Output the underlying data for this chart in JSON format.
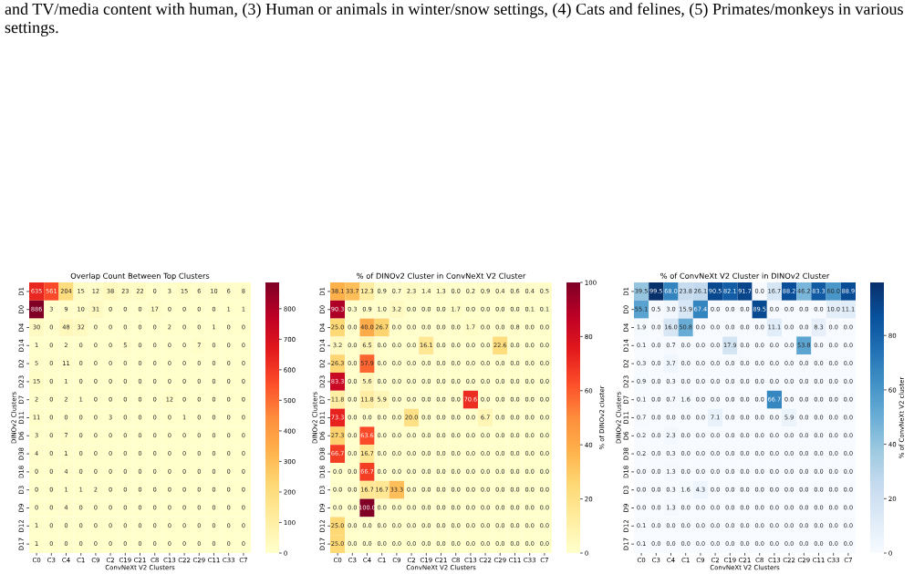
{
  "chart_data": [
    {
      "type": "heatmap",
      "title": "Overlap Count Between Top Clusters",
      "xlabel": "ConvNeXt V2 Clusters",
      "ylabel": "DINOv2 Clusters",
      "annotations": [
        "and TV/media content with human, (3) Human or animals in winter/snow settings, (4) Cats and felines, (5) Primates/monkeys in various settings."
      ],
      "categories": [
        "C0",
        "C3",
        "C4",
        "C1",
        "C9",
        "C2",
        "C19",
        "C21",
        "C8",
        "C13",
        "C22",
        "C29",
        "C11",
        "C33",
        "C7"
      ],
      "y_categories": [
        "D1",
        "D0",
        "D4",
        "D14",
        "D2",
        "D23",
        "D7",
        "D11",
        "D6",
        "D38",
        "D18",
        "D3",
        "D9",
        "D12",
        "D17"
      ],
      "clim": [
        0,
        886
      ],
      "cticks": [
        0,
        100,
        200,
        300,
        400,
        500,
        600,
        700,
        800
      ],
      "data_labels": true,
      "cells": [
        [
          635,
          561,
          204,
          15,
          12,
          38,
          23,
          22,
          0,
          3,
          15,
          6,
          10,
          6,
          8
        ],
        [
          886,
          3,
          9,
          10,
          31,
          0,
          0,
          0,
          17,
          0,
          0,
          0,
          0,
          1,
          1
        ],
        [
          30,
          0,
          48,
          32,
          0,
          0,
          0,
          0,
          0,
          2,
          0,
          0,
          1,
          0,
          0
        ],
        [
          1,
          0,
          2,
          0,
          0,
          0,
          5,
          0,
          0,
          0,
          0,
          7,
          0,
          0,
          0
        ],
        [
          5,
          0,
          11,
          0,
          0,
          0,
          0,
          0,
          0,
          0,
          0,
          0,
          0,
          0,
          0
        ],
        [
          15,
          0,
          1,
          0,
          0,
          0,
          0,
          0,
          0,
          0,
          0,
          0,
          0,
          0,
          0
        ],
        [
          2,
          0,
          2,
          1,
          0,
          0,
          0,
          0,
          0,
          12,
          0,
          0,
          0,
          0,
          0
        ],
        [
          11,
          0,
          0,
          0,
          0,
          3,
          0,
          0,
          0,
          0,
          1,
          0,
          0,
          0,
          0
        ],
        [
          3,
          0,
          7,
          0,
          0,
          0,
          0,
          0,
          0,
          0,
          0,
          0,
          0,
          0,
          0
        ],
        [
          4,
          0,
          1,
          0,
          0,
          0,
          0,
          0,
          0,
          0,
          0,
          0,
          0,
          0,
          0
        ],
        [
          0,
          0,
          4,
          0,
          0,
          0,
          0,
          0,
          0,
          0,
          0,
          0,
          0,
          0,
          0
        ],
        [
          0,
          0,
          1,
          1,
          2,
          0,
          0,
          0,
          0,
          0,
          0,
          0,
          0,
          0,
          0
        ],
        [
          0,
          0,
          4,
          0,
          0,
          0,
          0,
          0,
          0,
          0,
          0,
          0,
          0,
          0,
          0
        ],
        [
          1,
          0,
          0,
          0,
          0,
          0,
          0,
          0,
          0,
          0,
          0,
          0,
          0,
          0,
          0
        ],
        [
          1,
          0,
          0,
          0,
          0,
          0,
          0,
          0,
          0,
          0,
          0,
          0,
          0,
          0,
          0
        ]
      ]
    },
    {
      "type": "heatmap",
      "title": "% of DINOv2 Cluster in ConvNeXt V2 Cluster",
      "xlabel": "ConvNeXt V2 Clusters",
      "ylabel": "DINOv2 Clusters",
      "clabel": "% of DINOv2 cluster",
      "categories": [
        "C0",
        "C3",
        "C4",
        "C1",
        "C9",
        "C2",
        "C19",
        "C21",
        "C8",
        "C13",
        "C22",
        "C29",
        "C11",
        "C33",
        "C7"
      ],
      "y_categories": [
        "D1",
        "D0",
        "D4",
        "D14",
        "D2",
        "D23",
        "D7",
        "D11",
        "D6",
        "D38",
        "D18",
        "D3",
        "D9",
        "D12",
        "D17"
      ],
      "clim": [
        0,
        100
      ],
      "cticks": [
        0,
        20,
        40,
        60,
        80,
        100
      ],
      "data_labels": true,
      "cell_labels": [
        [
          "38.1",
          "33.7",
          "12.3",
          "0.9",
          "0.7",
          "2.3",
          "1.4",
          "1.3",
          "0.0",
          "0.2",
          "0.9",
          "0.4",
          "0.6",
          "0.4",
          "0.5"
        ],
        [
          "90.3",
          "0.3",
          "0.9",
          "1.0",
          "3.2",
          "0.0",
          "0.0",
          "0.0",
          "1.7",
          "0.0",
          "0.0",
          "0.0",
          "0.0",
          "0.1",
          "0.1"
        ],
        [
          "25.0",
          "0.0",
          "40.0",
          "26.7",
          "0.0",
          "0.0",
          "0.0",
          "0.0",
          "0.0",
          "1.7",
          "0.0",
          "0.0",
          "0.8",
          "0.0",
          "0.0"
        ],
        [
          "3.2",
          "0.0",
          "6.5",
          "0.0",
          "0.0",
          "0.0",
          "16.1",
          "0.0",
          "0.0",
          "0.0",
          "0.0",
          "22.6",
          "0.0",
          "0.0",
          "0.0"
        ],
        [
          "26.3",
          "0.0",
          "57.9",
          "0.0",
          "0.0",
          "0.0",
          "0.0",
          "0.0",
          "0.0",
          "0.0",
          "0.0",
          "0.0",
          "0.0",
          "0.0",
          "0.0"
        ],
        [
          "83.3",
          "0.0",
          "5.6",
          "0.0",
          "0.0",
          "0.0",
          "0.0",
          "0.0",
          "0.0",
          "0.0",
          "0.0",
          "0.0",
          "0.0",
          "0.0",
          "0.0"
        ],
        [
          "11.8",
          "0.0",
          "11.8",
          "5.9",
          "0.0",
          "0.0",
          "0.0",
          "0.0",
          "0.0",
          "70.6",
          "0.0",
          "0.0",
          "0.0",
          "0.0",
          "0.0"
        ],
        [
          "73.3",
          "0.0",
          "0.0",
          "0.0",
          "0.0",
          "20.0",
          "0.0",
          "0.0",
          "0.0",
          "0.0",
          "6.7",
          "0.0",
          "0.0",
          "0.0",
          "0.0"
        ],
        [
          "27.3",
          "0.0",
          "63.6",
          "0.0",
          "0.0",
          "0.0",
          "0.0",
          "0.0",
          "0.0",
          "0.0",
          "0.0",
          "0.0",
          "0.0",
          "0.0",
          "0.0"
        ],
        [
          "66.7",
          "0.0",
          "16.7",
          "0.0",
          "0.0",
          "0.0",
          "0.0",
          "0.0",
          "0.0",
          "0.0",
          "0.0",
          "0.0",
          "0.0",
          "0.0",
          "0.0"
        ],
        [
          "0.0",
          "0.0",
          "66.7",
          "0.0",
          "0.0",
          "0.0",
          "0.0",
          "0.0",
          "0.0",
          "0.0",
          "0.0",
          "0.0",
          "0.0",
          "0.0",
          "0.0"
        ],
        [
          "0.0",
          "0.0",
          "16.7",
          "16.7",
          "33.3",
          "0.0",
          "0.0",
          "0.0",
          "0.0",
          "0.0",
          "0.0",
          "0.0",
          "0.0",
          "0.0",
          "0.0"
        ],
        [
          "0.0",
          "0.0",
          "100.0",
          "0.0",
          "0.0",
          "0.0",
          "0.0",
          "0.0",
          "0.0",
          "0.0",
          "0.0",
          "0.0",
          "0.0",
          "0.0",
          "0.0"
        ],
        [
          "25.0",
          "0.0",
          "0.0",
          "0.0",
          "0.0",
          "0.0",
          "0.0",
          "0.0",
          "0.0",
          "0.0",
          "0.0",
          "0.0",
          "0.0",
          "0.0",
          "0.0"
        ],
        [
          "25.0",
          "0.0",
          "0.0",
          "0.0",
          "0.0",
          "0.0",
          "0.0",
          "0.0",
          "0.0",
          "0.0",
          "0.0",
          "0.0",
          "0.0",
          "0.0",
          "0.0"
        ]
      ],
      "cells": [
        [
          38.1,
          33.7,
          12.3,
          0.9,
          0.7,
          2.3,
          1.4,
          1.3,
          0.0,
          0.2,
          0.9,
          0.4,
          0.6,
          0.4,
          0.5
        ],
        [
          90.3,
          0.3,
          0.9,
          1.0,
          3.2,
          0.0,
          0.0,
          0.0,
          1.7,
          0.0,
          0.0,
          0.0,
          0.0,
          0.1,
          0.1
        ],
        [
          25.0,
          0.0,
          40.0,
          26.7,
          0.0,
          0.0,
          0.0,
          0.0,
          0.0,
          1.7,
          0.0,
          0.0,
          0.8,
          0.0,
          0.0
        ],
        [
          3.2,
          0.0,
          6.5,
          0.0,
          0.0,
          0.0,
          16.1,
          0.0,
          0.0,
          0.0,
          0.0,
          22.6,
          0.0,
          0.0,
          0.0
        ],
        [
          26.3,
          0.0,
          57.9,
          0.0,
          0.0,
          0.0,
          0.0,
          0.0,
          0.0,
          0.0,
          0.0,
          0.0,
          0.0,
          0.0,
          0.0
        ],
        [
          83.3,
          0.0,
          5.6,
          0.0,
          0.0,
          0.0,
          0.0,
          0.0,
          0.0,
          0.0,
          0.0,
          0.0,
          0.0,
          0.0,
          0.0
        ],
        [
          11.8,
          0.0,
          11.8,
          5.9,
          0.0,
          0.0,
          0.0,
          0.0,
          0.0,
          70.6,
          0.0,
          0.0,
          0.0,
          0.0,
          0.0
        ],
        [
          73.3,
          0.0,
          0.0,
          0.0,
          0.0,
          20.0,
          0.0,
          0.0,
          0.0,
          0.0,
          6.7,
          0.0,
          0.0,
          0.0,
          0.0
        ],
        [
          27.3,
          0.0,
          63.6,
          0.0,
          0.0,
          0.0,
          0.0,
          0.0,
          0.0,
          0.0,
          0.0,
          0.0,
          0.0,
          0.0,
          0.0
        ],
        [
          66.7,
          0.0,
          16.7,
          0.0,
          0.0,
          0.0,
          0.0,
          0.0,
          0.0,
          0.0,
          0.0,
          0.0,
          0.0,
          0.0,
          0.0
        ],
        [
          0.0,
          0.0,
          66.7,
          0.0,
          0.0,
          0.0,
          0.0,
          0.0,
          0.0,
          0.0,
          0.0,
          0.0,
          0.0,
          0.0,
          0.0
        ],
        [
          0.0,
          0.0,
          16.7,
          16.7,
          33.3,
          0.0,
          0.0,
          0.0,
          0.0,
          0.0,
          0.0,
          0.0,
          0.0,
          0.0,
          0.0
        ],
        [
          0.0,
          0.0,
          100.0,
          0.0,
          0.0,
          0.0,
          0.0,
          0.0,
          0.0,
          0.0,
          0.0,
          0.0,
          0.0,
          0.0,
          0.0
        ],
        [
          25.0,
          0.0,
          0.0,
          0.0,
          0.0,
          0.0,
          0.0,
          0.0,
          0.0,
          0.0,
          0.0,
          0.0,
          0.0,
          0.0,
          0.0
        ],
        [
          25.0,
          0.0,
          0.0,
          0.0,
          0.0,
          0.0,
          0.0,
          0.0,
          0.0,
          0.0,
          0.0,
          0.0,
          0.0,
          0.0,
          0.0
        ]
      ]
    },
    {
      "type": "heatmap",
      "title": "% of ConvNeXt V2 Cluster in DINOv2 Cluster",
      "xlabel": "ConvNeXt V2 Clusters",
      "ylabel": "DINOv2 Clusters",
      "clabel": "% of ConvNeXt V2 cluster",
      "categories": [
        "C0",
        "C3",
        "C4",
        "C1",
        "C9",
        "C2",
        "C19",
        "C21",
        "C8",
        "C13",
        "C22",
        "C29",
        "C11",
        "C33",
        "C7"
      ],
      "y_categories": [
        "D1",
        "D0",
        "D4",
        "D14",
        "D2",
        "D23",
        "D7",
        "D11",
        "D6",
        "D38",
        "D18",
        "D3",
        "D9",
        "D12",
        "D17"
      ],
      "clim": [
        0,
        99.5
      ],
      "cticks": [
        0,
        20,
        40,
        60,
        80
      ],
      "data_labels": true,
      "cell_labels": [
        [
          "39.5",
          "99.5",
          "68.0",
          "23.8",
          "26.1",
          "90.5",
          "82.1",
          "91.7",
          "0.0",
          "16.7",
          "88.2",
          "46.2",
          "83.3",
          "60.0",
          "88.9"
        ],
        [
          "55.1",
          "0.5",
          "3.0",
          "15.9",
          "67.4",
          "0.0",
          "0.0",
          "0.0",
          "89.5",
          "0.0",
          "0.0",
          "0.0",
          "0.0",
          "10.0",
          "11.1"
        ],
        [
          "1.9",
          "0.0",
          "16.0",
          "50.8",
          "0.0",
          "0.0",
          "0.0",
          "0.0",
          "0.0",
          "11.1",
          "0.0",
          "0.0",
          "8.3",
          "0.0",
          "0.0"
        ],
        [
          "0.1",
          "0.0",
          "0.7",
          "0.0",
          "0.0",
          "0.0",
          "17.9",
          "0.0",
          "0.0",
          "0.0",
          "0.0",
          "53.8",
          "0.0",
          "0.0",
          "0.0"
        ],
        [
          "0.3",
          "0.0",
          "3.7",
          "0.0",
          "0.0",
          "0.0",
          "0.0",
          "0.0",
          "0.0",
          "0.0",
          "0.0",
          "0.0",
          "0.0",
          "0.0",
          "0.0"
        ],
        [
          "0.9",
          "0.0",
          "0.3",
          "0.0",
          "0.0",
          "0.0",
          "0.0",
          "0.0",
          "0.0",
          "0.0",
          "0.0",
          "0.0",
          "0.0",
          "0.0",
          "0.0"
        ],
        [
          "0.1",
          "0.0",
          "0.7",
          "1.6",
          "0.0",
          "0.0",
          "0.0",
          "0.0",
          "0.0",
          "66.7",
          "0.0",
          "0.0",
          "0.0",
          "0.0",
          "0.0"
        ],
        [
          "0.7",
          "0.0",
          "0.0",
          "0.0",
          "0.0",
          "7.1",
          "0.0",
          "0.0",
          "0.0",
          "0.0",
          "5.9",
          "0.0",
          "0.0",
          "0.0",
          "0.0"
        ],
        [
          "0.2",
          "0.0",
          "2.3",
          "0.0",
          "0.0",
          "0.0",
          "0.0",
          "0.0",
          "0.0",
          "0.0",
          "0.0",
          "0.0",
          "0.0",
          "0.0",
          "0.0"
        ],
        [
          "0.2",
          "0.0",
          "0.3",
          "0.0",
          "0.0",
          "0.0",
          "0.0",
          "0.0",
          "0.0",
          "0.0",
          "0.0",
          "0.0",
          "0.0",
          "0.0",
          "0.0"
        ],
        [
          "0.0",
          "0.0",
          "1.3",
          "0.0",
          "0.0",
          "0.0",
          "0.0",
          "0.0",
          "0.0",
          "0.0",
          "0.0",
          "0.0",
          "0.0",
          "0.0",
          "0.0"
        ],
        [
          "0.0",
          "0.0",
          "0.3",
          "1.6",
          "4.3",
          "0.0",
          "0.0",
          "0.0",
          "0.0",
          "0.0",
          "0.0",
          "0.0",
          "0.0",
          "0.0",
          "0.0"
        ],
        [
          "0.0",
          "0.0",
          "1.3",
          "0.0",
          "0.0",
          "0.0",
          "0.0",
          "0.0",
          "0.0",
          "0.0",
          "0.0",
          "0.0",
          "0.0",
          "0.0",
          "0.0"
        ],
        [
          "0.1",
          "0.0",
          "0.0",
          "0.0",
          "0.0",
          "0.0",
          "0.0",
          "0.0",
          "0.0",
          "0.0",
          "0.0",
          "0.0",
          "0.0",
          "0.0",
          "0.0"
        ],
        [
          "0.1",
          "0.0",
          "0.0",
          "0.0",
          "0.0",
          "0.0",
          "0.0",
          "0.0",
          "0.0",
          "0.0",
          "0.0",
          "0.0",
          "0.0",
          "0.0",
          "0.0"
        ]
      ],
      "cells": [
        [
          39.5,
          99.5,
          68.0,
          23.8,
          26.1,
          90.5,
          82.1,
          91.7,
          0.0,
          16.7,
          88.2,
          46.2,
          83.3,
          60.0,
          88.9
        ],
        [
          55.1,
          0.5,
          3.0,
          15.9,
          67.4,
          0.0,
          0.0,
          0.0,
          89.5,
          0.0,
          0.0,
          0.0,
          0.0,
          10.0,
          11.1
        ],
        [
          1.9,
          0.0,
          16.0,
          50.8,
          0.0,
          0.0,
          0.0,
          0.0,
          0.0,
          11.1,
          0.0,
          0.0,
          8.3,
          0.0,
          0.0
        ],
        [
          0.1,
          0.0,
          0.7,
          0.0,
          0.0,
          0.0,
          17.9,
          0.0,
          0.0,
          0.0,
          0.0,
          53.8,
          0.0,
          0.0,
          0.0
        ],
        [
          0.3,
          0.0,
          3.7,
          0.0,
          0.0,
          0.0,
          0.0,
          0.0,
          0.0,
          0.0,
          0.0,
          0.0,
          0.0,
          0.0,
          0.0
        ],
        [
          0.9,
          0.0,
          0.3,
          0.0,
          0.0,
          0.0,
          0.0,
          0.0,
          0.0,
          0.0,
          0.0,
          0.0,
          0.0,
          0.0,
          0.0
        ],
        [
          0.1,
          0.0,
          0.7,
          1.6,
          0.0,
          0.0,
          0.0,
          0.0,
          0.0,
          66.7,
          0.0,
          0.0,
          0.0,
          0.0,
          0.0
        ],
        [
          0.7,
          0.0,
          0.0,
          0.0,
          0.0,
          7.1,
          0.0,
          0.0,
          0.0,
          0.0,
          5.9,
          0.0,
          0.0,
          0.0,
          0.0
        ],
        [
          0.2,
          0.0,
          2.3,
          0.0,
          0.0,
          0.0,
          0.0,
          0.0,
          0.0,
          0.0,
          0.0,
          0.0,
          0.0,
          0.0,
          0.0
        ],
        [
          0.2,
          0.0,
          0.3,
          0.0,
          0.0,
          0.0,
          0.0,
          0.0,
          0.0,
          0.0,
          0.0,
          0.0,
          0.0,
          0.0,
          0.0
        ],
        [
          0.0,
          0.0,
          1.3,
          0.0,
          0.0,
          0.0,
          0.0,
          0.0,
          0.0,
          0.0,
          0.0,
          0.0,
          0.0,
          0.0,
          0.0
        ],
        [
          0.0,
          0.0,
          0.3,
          1.6,
          4.3,
          0.0,
          0.0,
          0.0,
          0.0,
          0.0,
          0.0,
          0.0,
          0.0,
          0.0,
          0.0
        ],
        [
          0.0,
          0.0,
          1.3,
          0.0,
          0.0,
          0.0,
          0.0,
          0.0,
          0.0,
          0.0,
          0.0,
          0.0,
          0.0,
          0.0,
          0.0
        ],
        [
          0.1,
          0.0,
          0.0,
          0.0,
          0.0,
          0.0,
          0.0,
          0.0,
          0.0,
          0.0,
          0.0,
          0.0,
          0.0,
          0.0,
          0.0
        ],
        [
          0.1,
          0.0,
          0.0,
          0.0,
          0.0,
          0.0,
          0.0,
          0.0,
          0.0,
          0.0,
          0.0,
          0.0,
          0.0,
          0.0,
          0.0
        ]
      ]
    }
  ]
}
